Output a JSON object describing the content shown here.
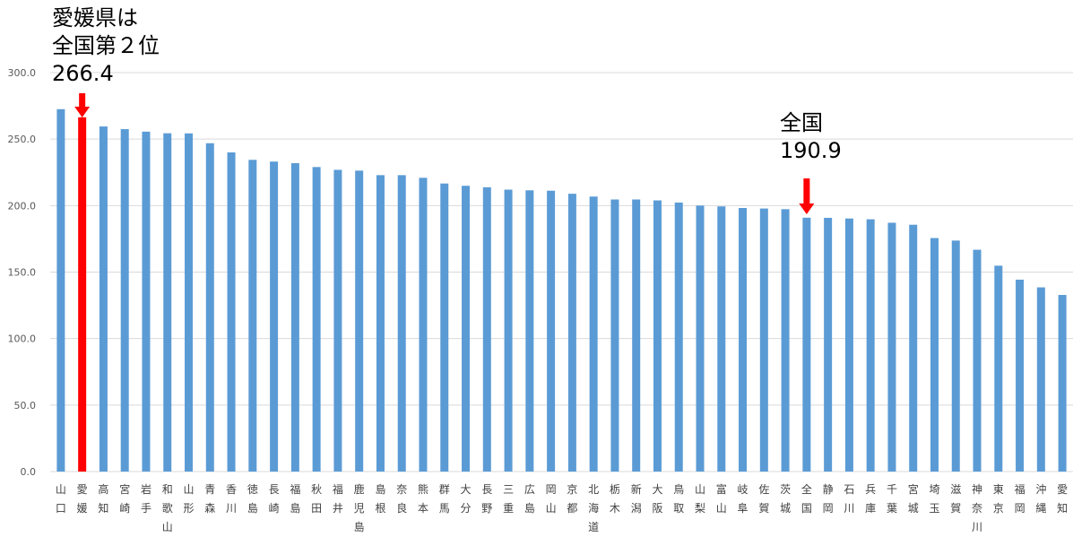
{
  "chart_data": {
    "type": "bar",
    "ylim": [
      0,
      300
    ],
    "yticks": [
      "0.0",
      "50.0",
      "100.0",
      "150.0",
      "200.0",
      "250.0",
      "300.0"
    ],
    "grid": true,
    "colors": {
      "bar": "#5b9bd5",
      "highlight": "#ff0000",
      "grid": "#d9d9d9",
      "arrow": "#ff0000"
    },
    "highlight_index": 1,
    "categories": [
      "山口",
      "愛媛",
      "高知",
      "宮崎",
      "岩手",
      "和歌山",
      "山形",
      "青森",
      "香川",
      "徳島",
      "長崎",
      "福島",
      "秋田",
      "福井",
      "鹿児島",
      "島根",
      "奈良",
      "熊本",
      "群馬",
      "大分",
      "長野",
      "三重",
      "広島",
      "岡山",
      "京都",
      "北海道",
      "栃木",
      "新潟",
      "大阪",
      "鳥取",
      "山梨",
      "富山",
      "岐阜",
      "佐賀",
      "茨城",
      "全国",
      "静岡",
      "石川",
      "兵庫",
      "千葉",
      "宮城",
      "埼玉",
      "滋賀",
      "神奈川",
      "東京",
      "福岡",
      "沖縄",
      "愛知"
    ],
    "values": [
      272.5,
      266.4,
      259.5,
      257.5,
      255.6,
      254.4,
      254.3,
      246.9,
      240.0,
      234.4,
      233.1,
      231.9,
      229.0,
      226.9,
      226.3,
      222.9,
      222.9,
      220.9,
      216.6,
      214.9,
      213.8,
      212.0,
      211.5,
      211.2,
      208.9,
      206.8,
      204.6,
      204.6,
      203.9,
      202.3,
      200.0,
      199.4,
      198.2,
      197.8,
      197.3,
      190.9,
      190.8,
      190.3,
      189.7,
      187.1,
      185.6,
      175.6,
      173.7,
      166.8,
      154.8,
      144.3,
      138.5,
      132.8
    ]
  },
  "annotations": {
    "ehime": {
      "line1": "愛媛県は",
      "line2": "全国第２位",
      "value": "266.4"
    },
    "national": {
      "label": "全国",
      "value": "190.9"
    }
  }
}
